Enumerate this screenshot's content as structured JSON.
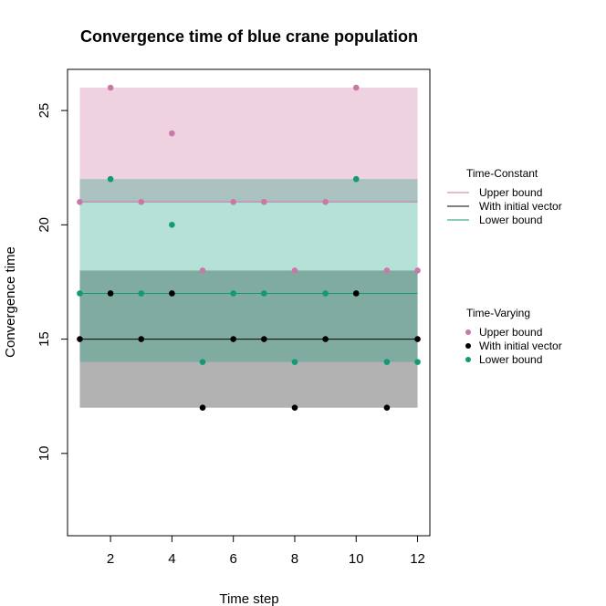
{
  "chart_data": {
    "type": "scatter",
    "title": "Convergence time of blue crane population",
    "xlabel": "Time step",
    "ylabel": "Convergence time",
    "xlim": [
      0.6,
      12.4
    ],
    "ylim": [
      6.4,
      26.8
    ],
    "x_ticks": [
      2,
      4,
      6,
      8,
      10,
      12
    ],
    "y_ticks": [
      10,
      15,
      20,
      25
    ],
    "grid": false,
    "bands": [
      {
        "series": "Upper bound",
        "ymin": 21,
        "ymax": 26,
        "x_from": 1,
        "x_to": 12,
        "color": "#e7bfd3",
        "opacity": 0.7
      },
      {
        "series": "With initial vector",
        "ymin": 12,
        "ymax": 18,
        "x_from": 1,
        "x_to": 12,
        "color": "#000000",
        "opacity": 0.3
      },
      {
        "series": "Lower bound",
        "ymin": 14,
        "ymax": 22,
        "x_from": 1,
        "x_to": 12,
        "color": "#0e9a76",
        "opacity": 0.3
      }
    ],
    "constant_lines": [
      {
        "series": "Upper bound",
        "y": 21,
        "color": "#c879a5"
      },
      {
        "series": "With initial vector",
        "y": 15,
        "color": "#000000"
      },
      {
        "series": "Lower bound",
        "y": 17,
        "color": "#139a74"
      }
    ],
    "series": [
      {
        "name": "Upper bound",
        "color": "#c879a5",
        "x": [
          1,
          2,
          3,
          4,
          5,
          6,
          7,
          8,
          9,
          10,
          11,
          12
        ],
        "values": [
          21,
          26,
          21,
          24,
          18,
          21,
          21,
          18,
          21,
          26,
          18,
          18
        ]
      },
      {
        "name": "With initial vector",
        "color": "#000000",
        "x": [
          1,
          2,
          3,
          4,
          5,
          6,
          7,
          8,
          9,
          10,
          11,
          12
        ],
        "values": [
          15,
          17,
          15,
          17,
          12,
          15,
          15,
          12,
          15,
          17,
          12,
          15
        ]
      },
      {
        "name": "Lower bound",
        "color": "#139a74",
        "x": [
          1,
          2,
          3,
          4,
          5,
          6,
          7,
          8,
          9,
          10,
          11,
          12
        ],
        "values": [
          17,
          22,
          17,
          20,
          14,
          17,
          17,
          14,
          17,
          22,
          14,
          14
        ]
      }
    ],
    "legends": [
      {
        "title": "Time-Constant",
        "kind": "line",
        "entries": [
          "Upper bound",
          "With initial vector",
          "Lower bound"
        ],
        "colors": [
          "#c879a5",
          "#000000",
          "#139a74"
        ]
      },
      {
        "title": "Time-Varying",
        "kind": "point",
        "entries": [
          "Upper bound",
          "With initial vector",
          "Lower bound"
        ],
        "colors": [
          "#c879a5",
          "#000000",
          "#139a74"
        ]
      }
    ],
    "legend_position": "right"
  }
}
